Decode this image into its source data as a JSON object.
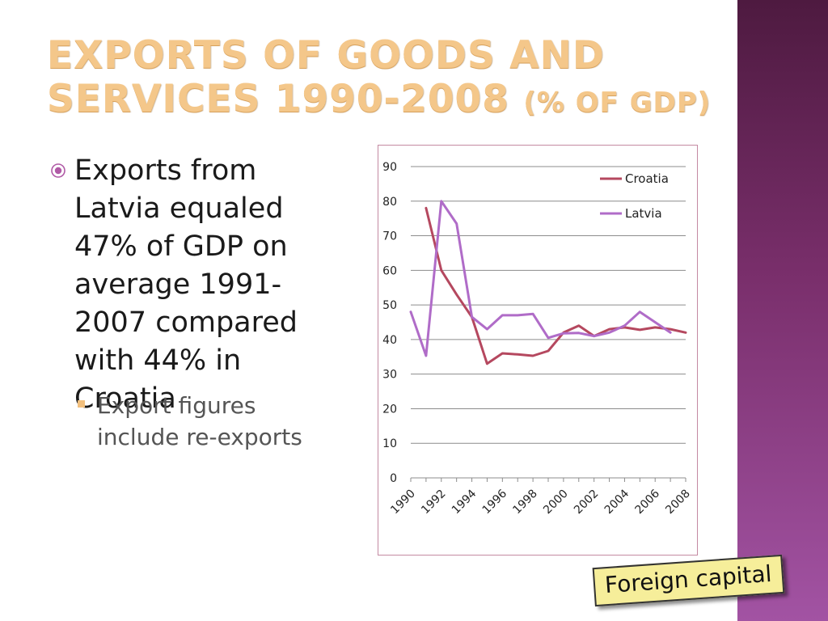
{
  "slide": {
    "title_main": "Exports of goods and services 1990-2008",
    "title_suffix": "(% of GDP)",
    "bullet_main": "Exports from Latvia equaled 47% of GDP on average 1991-2007 compared with 44% in Croatia",
    "bullet_sub": "Export figures include re-exports",
    "caption": "Foreign capital",
    "colors": {
      "title": "#f4c78a",
      "side_band": "#7a2f6c",
      "caption_bg": "#f6ee9a"
    }
  },
  "chart_data": {
    "type": "line",
    "title": "",
    "xlabel": "",
    "ylabel": "",
    "ylim": [
      0,
      90
    ],
    "yticks": [
      "0",
      "10",
      "20",
      "30",
      "40",
      "50",
      "60",
      "70",
      "80",
      "90"
    ],
    "x": [
      1990,
      1991,
      1992,
      1993,
      1994,
      1995,
      1996,
      1997,
      1998,
      1999,
      2000,
      2001,
      2002,
      2003,
      2004,
      2005,
      2006,
      2007,
      2008
    ],
    "xtick_labels": [
      "1990",
      "1992",
      "1994",
      "1996",
      "1998",
      "2000",
      "2002",
      "2004",
      "2006",
      "2008"
    ],
    "grid": "horizontal",
    "legend_position": "top-right",
    "series": [
      {
        "name": "Croatia",
        "color": "#b5485f",
        "values": [
          null,
          78,
          60,
          53,
          46.5,
          33,
          36,
          35.7,
          35.3,
          36.7,
          42,
          44,
          41,
          43,
          43.5,
          42.8,
          43.5,
          43,
          42
        ]
      },
      {
        "name": "Latvia",
        "color": "#b06cc8",
        "values": [
          48,
          35.3,
          80,
          73.5,
          46.5,
          43,
          47,
          47,
          47.4,
          40.5,
          41.8,
          41.9,
          41,
          42,
          44,
          48,
          45,
          42,
          null
        ]
      }
    ]
  }
}
